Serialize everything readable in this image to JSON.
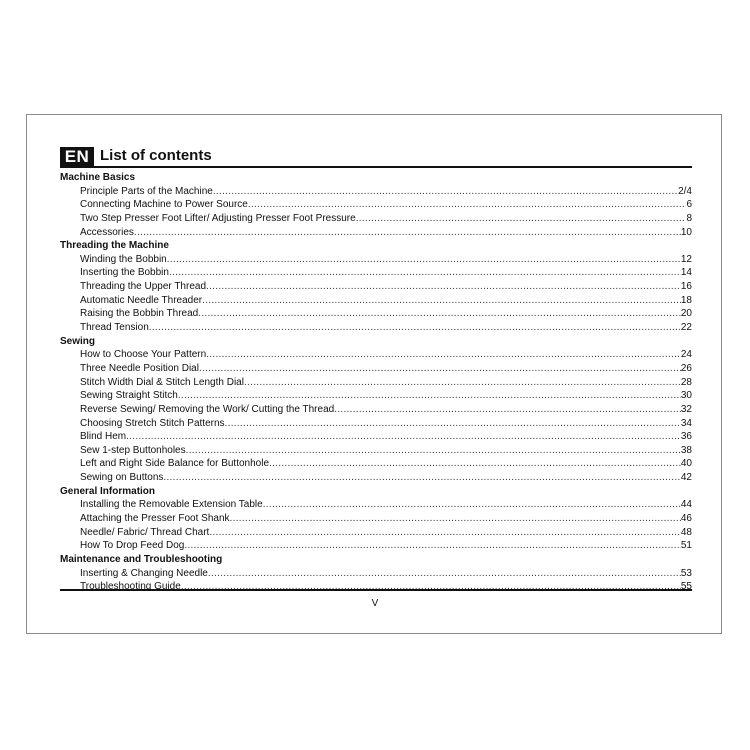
{
  "header": {
    "badge": "EN",
    "title": "List of contents"
  },
  "sections": [
    {
      "title": "Machine Basics",
      "items": [
        {
          "label": "Principle Parts of the Machine",
          "page": "2/4"
        },
        {
          "label": "Connecting Machine to Power Source",
          "page": "6"
        },
        {
          "label": "Two Step Presser Foot Lifter/ Adjusting Presser Foot Pressure",
          "page": "8"
        },
        {
          "label": "Accessories",
          "page": "10"
        }
      ]
    },
    {
      "title": "Threading the Machine",
      "items": [
        {
          "label": "Winding the Bobbin",
          "page": "12"
        },
        {
          "label": "Inserting the Bobbin",
          "page": "14"
        },
        {
          "label": "Threading the Upper Thread",
          "page": "16"
        },
        {
          "label": "Automatic Needle Threader",
          "page": "18"
        },
        {
          "label": "Raising the Bobbin Thread",
          "page": "20"
        },
        {
          "label": "Thread Tension",
          "page": "22"
        }
      ]
    },
    {
      "title": "Sewing",
      "items": [
        {
          "label": "How to Choose Your Pattern",
          "page": "24"
        },
        {
          "label": "Three Needle Position Dial",
          "page": "26"
        },
        {
          "label": "Stitch Width Dial & Stitch Length Dial",
          "page": "28"
        },
        {
          "label": "Sewing Straight Stitch",
          "page": "30"
        },
        {
          "label": "Reverse Sewing/ Removing the Work/ Cutting the Thread",
          "page": "32"
        },
        {
          "label": "Choosing Stretch Stitch Patterns",
          "page": "34"
        },
        {
          "label": "Blind Hem",
          "page": "36"
        },
        {
          "label": "Sew 1-step Buttonholes",
          "page": "38"
        },
        {
          "label": "Left and Right Side Balance for Buttonhole",
          "page": "40"
        },
        {
          "label": "Sewing on Buttons",
          "page": "42"
        }
      ]
    },
    {
      "title": "General Information",
      "items": [
        {
          "label": "Installing the Removable Extension Table",
          "page": "44"
        },
        {
          "label": "Attaching the Presser Foot Shank",
          "page": "46"
        },
        {
          "label": "Needle/ Fabric/ Thread Chart",
          "page": "48"
        },
        {
          "label": "How To Drop Feed Dog",
          "page": "51"
        }
      ]
    },
    {
      "title": "Maintenance and Troubleshooting",
      "items": [
        {
          "label": "Inserting & Changing Needle",
          "page": "53"
        },
        {
          "label": "Troubleshooting Guide",
          "page": "55"
        }
      ]
    }
  ],
  "footer": {
    "page_number": "V"
  }
}
